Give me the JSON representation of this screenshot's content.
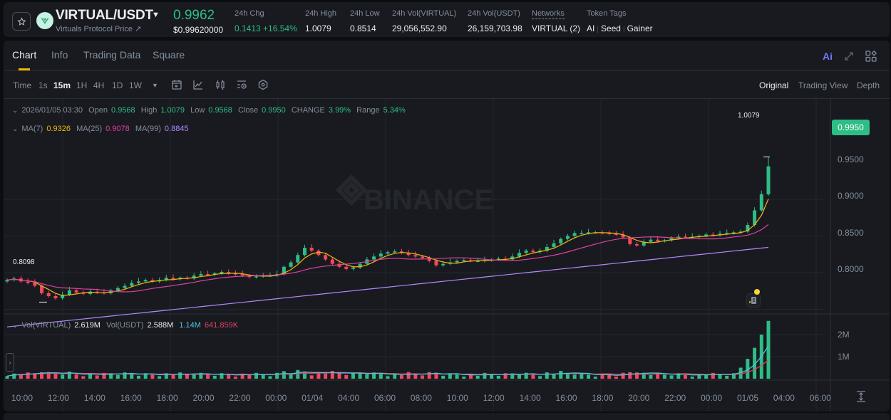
{
  "ticker": {
    "star_icon": "star-icon",
    "logo_icon": "virtuals-logo-icon",
    "pair": "VIRTUAL/USDT",
    "pair_caret": "▼",
    "subtitle": "Virtuals Protocol Price ↗",
    "last_price": "0.9962",
    "last_price_usd": "$0.99620000",
    "stats": [
      {
        "label": "24h Chg",
        "value": "0.1413 +16.54%",
        "color": "green"
      },
      {
        "label": "24h High",
        "value": "1.0079"
      },
      {
        "label": "24h Low",
        "value": "0.8514"
      },
      {
        "label": "24h Vol(VIRTUAL)",
        "value": "29,056,552.90"
      },
      {
        "label": "24h Vol(USDT)",
        "value": "26,159,703.98"
      },
      {
        "label": "Networks",
        "value": "VIRTUAL (2)"
      }
    ],
    "token_tags_label": "Token Tags",
    "token_tags": [
      "AI",
      "Seed",
      "Gainer"
    ],
    "tag_sep": "|"
  },
  "tabs": [
    {
      "label": "Chart",
      "active": true
    },
    {
      "label": "Info"
    },
    {
      "label": "Trading Data"
    },
    {
      "label": "Square"
    }
  ],
  "top_right": {
    "ai_label": "Ai",
    "expand_icon": "expand-icon",
    "layout_icon": "layout-grid-icon"
  },
  "toolbar": {
    "time_label": "Time",
    "intervals": [
      "1s",
      "15m",
      "1H",
      "4H",
      "1D",
      "1W"
    ],
    "active_interval": "15m",
    "more_caret": "▼",
    "icons": [
      "calendar-icon",
      "indicator-icon",
      "candle-type-icon",
      "settings-list-icon",
      "hexagon-settings-icon"
    ],
    "views": [
      "Original",
      "Trading View",
      "Depth"
    ],
    "active_view": "Original"
  },
  "ohlc_legend": {
    "datetime": "2026/01/05 03:30",
    "open_label": "Open",
    "open": "0.9568",
    "high_label": "High",
    "high": "1.0079",
    "low_label": "Low",
    "low": "0.9568",
    "close_label": "Close",
    "close": "0.9950",
    "change_label": "CHANGE",
    "change": "3.99%",
    "range_label": "Range",
    "range": "5.34%"
  },
  "ma_legend": {
    "ma7_label": "MA(7)",
    "ma7": "0.9326",
    "ma25_label": "MA(25)",
    "ma25": "0.9078",
    "ma99_label": "MA(99)",
    "ma99": "0.8845"
  },
  "vol_legend": {
    "vol_virtual_label": "Vol(VIRTUAL)",
    "vol_virtual": "2.619M",
    "vol_usdt_label": "Vol(USDT)",
    "vol_usdt": "2.588M",
    "ma5": "1.14M",
    "ma10": "641.859K"
  },
  "price_tag": "0.9950",
  "high_marker": "1.0079",
  "low_marker": "0.8098",
  "watermark": "BINANCE",
  "colors": {
    "up": "#2ebd85",
    "down": "#f6465d",
    "ma7": "#f0b90b",
    "ma25": "#e040a0",
    "ma99": "#b388ff",
    "vol_ma5": "#4fc3e0",
    "vol_ma10": "#e0405e",
    "accent": "#f0b90b"
  },
  "chart_data": {
    "type": "candlestick",
    "title": "VIRTUAL/USDT 15m",
    "y_ticks": [
      "0.9500",
      "0.9000",
      "0.8500",
      "0.8000"
    ],
    "vol_ticks": [
      "2M",
      "1M"
    ],
    "x_ticks": [
      "10:00",
      "12:00",
      "14:00",
      "16:00",
      "18:00",
      "20:00",
      "22:00",
      "00:00",
      "01/04",
      "04:00",
      "06:00",
      "08:00",
      "10:00",
      "12:00",
      "14:00",
      "16:00",
      "18:00",
      "20:00",
      "22:00",
      "00:00",
      "01/05",
      "04:00",
      "06:00"
    ],
    "close_series": [
      0.84,
      0.842,
      0.838,
      0.836,
      0.832,
      0.822,
      0.818,
      0.815,
      0.82,
      0.826,
      0.823,
      0.821,
      0.824,
      0.823,
      0.822,
      0.826,
      0.829,
      0.832,
      0.836,
      0.838,
      0.84,
      0.838,
      0.84,
      0.843,
      0.841,
      0.843,
      0.842,
      0.846,
      0.848,
      0.847,
      0.849,
      0.851,
      0.849,
      0.848,
      0.846,
      0.844,
      0.845,
      0.846,
      0.846,
      0.848,
      0.858,
      0.864,
      0.874,
      0.884,
      0.88,
      0.874,
      0.868,
      0.862,
      0.858,
      0.855,
      0.857,
      0.862,
      0.868,
      0.872,
      0.876,
      0.878,
      0.879,
      0.877,
      0.874,
      0.872,
      0.87,
      0.866,
      0.86,
      0.862,
      0.864,
      0.866,
      0.867,
      0.866,
      0.866,
      0.867,
      0.868,
      0.869,
      0.868,
      0.872,
      0.877,
      0.88,
      0.878,
      0.88,
      0.885,
      0.89,
      0.896,
      0.9,
      0.904,
      0.904,
      0.905,
      0.905,
      0.904,
      0.903,
      0.902,
      0.898,
      0.889,
      0.887,
      0.892,
      0.895,
      0.893,
      0.894,
      0.897,
      0.899,
      0.898,
      0.899,
      0.9,
      0.902,
      0.901,
      0.903,
      0.904,
      0.905,
      0.906,
      0.915,
      0.935,
      0.957,
      0.995
    ],
    "ma7": "0.9326",
    "ma25": "0.9078",
    "ma99": "0.8845",
    "last_volumes_m": [
      0.5,
      0.9,
      1.4,
      2.0,
      2.62
    ]
  }
}
